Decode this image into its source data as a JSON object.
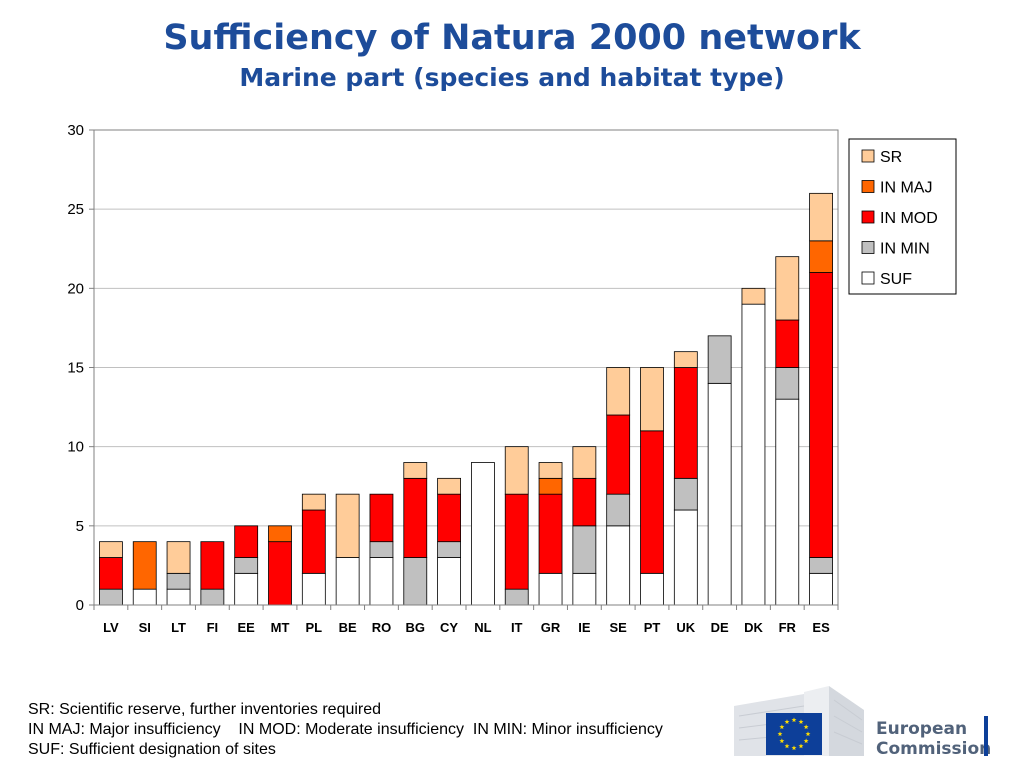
{
  "title": "Sufficiency of Natura 2000 network",
  "subtitle": "Marine part (species and habitat type)",
  "notes": [
    "SR: Scientific reserve, further inventories required",
    "IN MAJ: Major insufficiency    IN MOD: Moderate insufficiency  IN MIN: Minor insufficiency",
    "SUF: Sufficient designation of sites"
  ],
  "logo": {
    "line1": "European",
    "line2": "Commission"
  },
  "chart_data": {
    "type": "bar",
    "stacked": true,
    "categories": [
      "LV",
      "SI",
      "LT",
      "FI",
      "EE",
      "MT",
      "PL",
      "BE",
      "RO",
      "BG",
      "CY",
      "NL",
      "IT",
      "GR",
      "IE",
      "SE",
      "PT",
      "UK",
      "DE",
      "DK",
      "FR",
      "ES"
    ],
    "series": [
      {
        "name": "SUF",
        "color": "#ffffff",
        "values": [
          0,
          1,
          1,
          0,
          2,
          0,
          2,
          3,
          3,
          0,
          3,
          9,
          0,
          2,
          2,
          5,
          2,
          6,
          14,
          19,
          13,
          2
        ]
      },
      {
        "name": "IN MIN",
        "color": "#c0c0c0",
        "values": [
          1,
          0,
          1,
          1,
          1,
          0,
          0,
          0,
          1,
          3,
          1,
          0,
          1,
          0,
          3,
          2,
          0,
          2,
          3,
          0,
          2,
          1
        ]
      },
      {
        "name": "IN MOD",
        "color": "#ff0000",
        "values": [
          2,
          0,
          0,
          3,
          2,
          4,
          4,
          0,
          3,
          5,
          3,
          0,
          6,
          5,
          3,
          5,
          9,
          7,
          0,
          0,
          3,
          18
        ]
      },
      {
        "name": "IN MAJ",
        "color": "#ff6600",
        "values": [
          0,
          3,
          0,
          0,
          0,
          1,
          0,
          0,
          0,
          0,
          0,
          0,
          0,
          1,
          0,
          0,
          0,
          0,
          0,
          0,
          0,
          2
        ]
      },
      {
        "name": "SR",
        "color": "#ffcc99",
        "values": [
          1,
          0,
          2,
          0,
          0,
          0,
          1,
          4,
          0,
          1,
          1,
          0,
          3,
          1,
          2,
          3,
          4,
          1,
          0,
          1,
          4,
          3
        ]
      }
    ],
    "legend_order": [
      "SR",
      "IN MAJ",
      "IN MOD",
      "IN MIN",
      "SUF"
    ],
    "legend_position": "right",
    "ylim": [
      0,
      30
    ],
    "yticks": [
      0,
      5,
      10,
      15,
      20,
      25,
      30
    ],
    "grid": true,
    "xlabel": "",
    "ylabel": ""
  }
}
